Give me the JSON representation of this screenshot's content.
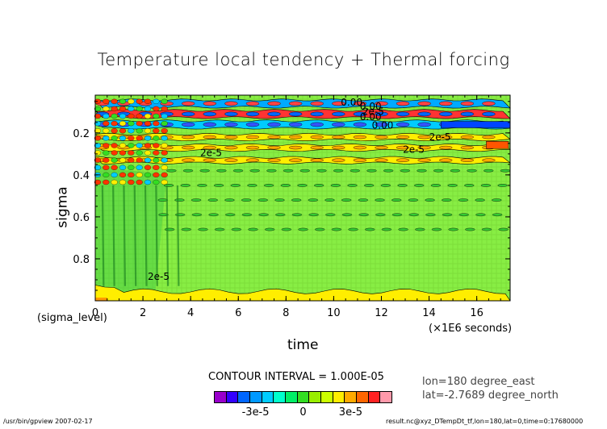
{
  "chart_data": {
    "type": "heatmap",
    "title": "Temperature local tendency + Thermal forcing",
    "xlabel": "time",
    "ylabel": "sigma",
    "x_unit": "(×1E6 seconds)",
    "y_unit": "(sigma_level)",
    "xlim": [
      0,
      17.4
    ],
    "ylim": [
      1.0,
      0.02
    ],
    "x_ticks": [
      "0",
      "2",
      "4",
      "6",
      "8",
      "10",
      "12",
      "14",
      "16"
    ],
    "y_ticks": [
      "0.2",
      "0.4",
      "0.6",
      "0.8"
    ],
    "contour_labels": [
      "0.00",
      "0.00",
      "2e-5",
      "0.00",
      "0.00",
      "2e-5",
      "2e-5",
      "2e-5",
      "2e-5"
    ],
    "contour_interval": "CONTOUR INTERVAL = 1.000E-05",
    "colorbar": {
      "colors": [
        "#9900cc",
        "#3300ff",
        "#0066ff",
        "#0099ff",
        "#00ccff",
        "#00ffcc",
        "#00ee66",
        "#33dd22",
        "#99ee00",
        "#ccff00",
        "#ffee00",
        "#ffaa00",
        "#ff6600",
        "#ff2222",
        "#ff99aa"
      ],
      "tick_labels": [
        "-3e-5",
        "0",
        "3e-5"
      ]
    },
    "bands": [
      {
        "sigma": 0.06,
        "kind": "blue-red"
      },
      {
        "sigma": 0.11,
        "kind": "red-blue"
      },
      {
        "sigma": 0.16,
        "kind": "blue"
      },
      {
        "sigma": 0.22,
        "kind": "yellow"
      },
      {
        "sigma": 0.27,
        "kind": "yellow"
      },
      {
        "sigma": 0.33,
        "kind": "yellow"
      }
    ]
  },
  "annotations": {
    "lon": "lon=180 degree_east",
    "lat": "lat=-2.7689 degree_north"
  },
  "footer": {
    "left": "/usr/bin/gpview  2007-02-17",
    "right": "result.nc@xyz_DTempDt_tf,lon=180,lat=0,time=0:17680000"
  }
}
